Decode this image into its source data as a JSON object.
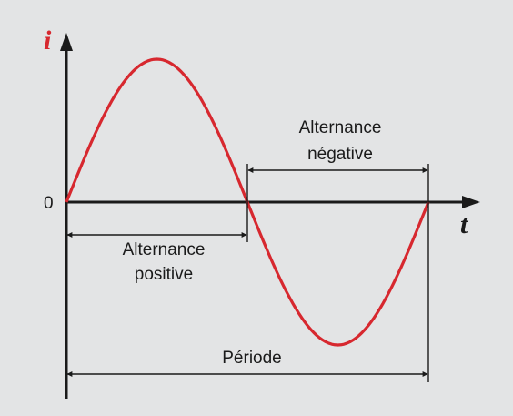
{
  "diagram": {
    "y_axis_label": "i",
    "x_axis_label": "t",
    "origin_label": "0",
    "negative_half": {
      "line1": "Alternance",
      "line2": "négative"
    },
    "positive_half": {
      "line1": "Alternance",
      "line2": "positive"
    },
    "period_label": "Période",
    "colors": {
      "background": "#e3e4e5",
      "curve": "#d7282f",
      "axes": "#1a1a1a",
      "dimension_lines": "#1a1a1a",
      "y_label": "#d7282f"
    }
  }
}
